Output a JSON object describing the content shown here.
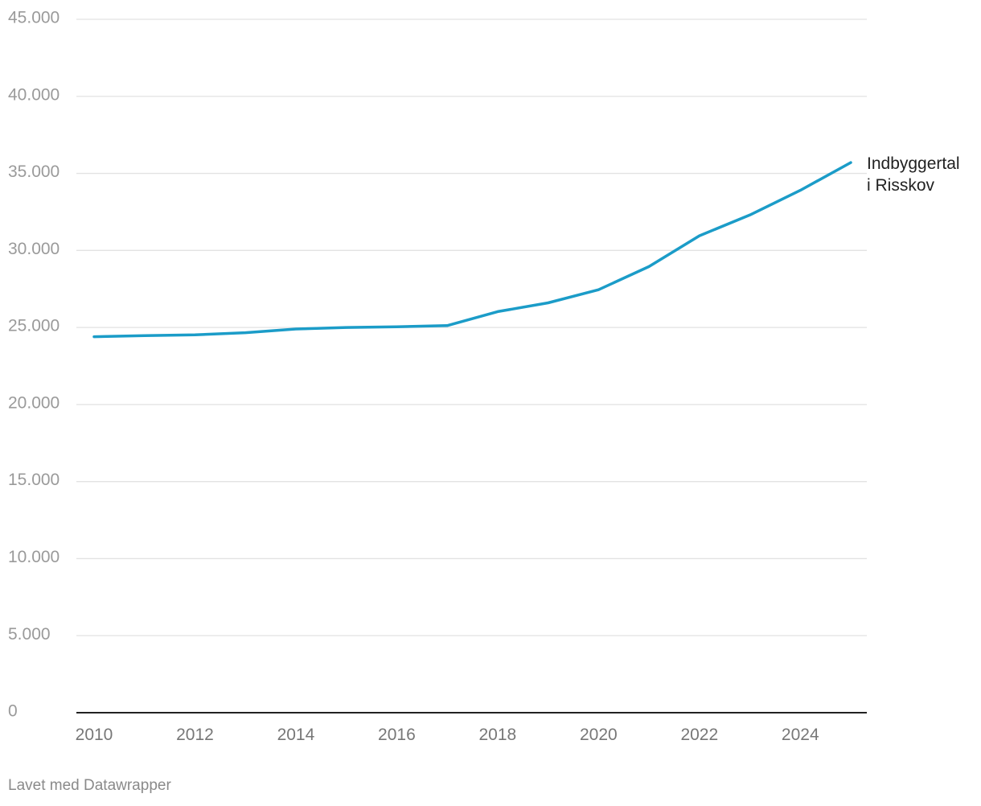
{
  "chart_data": {
    "type": "line",
    "x": [
      2010,
      2011,
      2012,
      2013,
      2014,
      2015,
      2016,
      2017,
      2018,
      2019,
      2020,
      2021,
      2022,
      2023,
      2024,
      2025
    ],
    "series": [
      {
        "name": "Indbyggertal i Risskov",
        "label_lines": [
          "Indbyggertal",
          "i Risskov"
        ],
        "color": "#1b9cc8",
        "values": [
          24400,
          24470,
          24520,
          24660,
          24900,
          25000,
          25050,
          25120,
          26030,
          26600,
          27450,
          28950,
          30950,
          32300,
          33900,
          35700
        ]
      }
    ],
    "xlim": [
      2010,
      2025
    ],
    "ylim": [
      0,
      45000
    ],
    "x_ticks": [
      "2010",
      "2012",
      "2014",
      "2016",
      "2018",
      "2020",
      "2022",
      "2024"
    ],
    "y_ticks": [
      "0",
      "5.000",
      "10.000",
      "15.000",
      "20.000",
      "25.000",
      "30.000",
      "35.000",
      "40.000",
      "45.000"
    ],
    "y_tick_values": [
      0,
      5000,
      10000,
      15000,
      20000,
      25000,
      30000,
      35000,
      40000,
      45000
    ],
    "grid": true,
    "legend": "inline label at end of line",
    "xlabel": "",
    "ylabel": ""
  },
  "footer": {
    "credit": "Lavet med Datawrapper"
  }
}
